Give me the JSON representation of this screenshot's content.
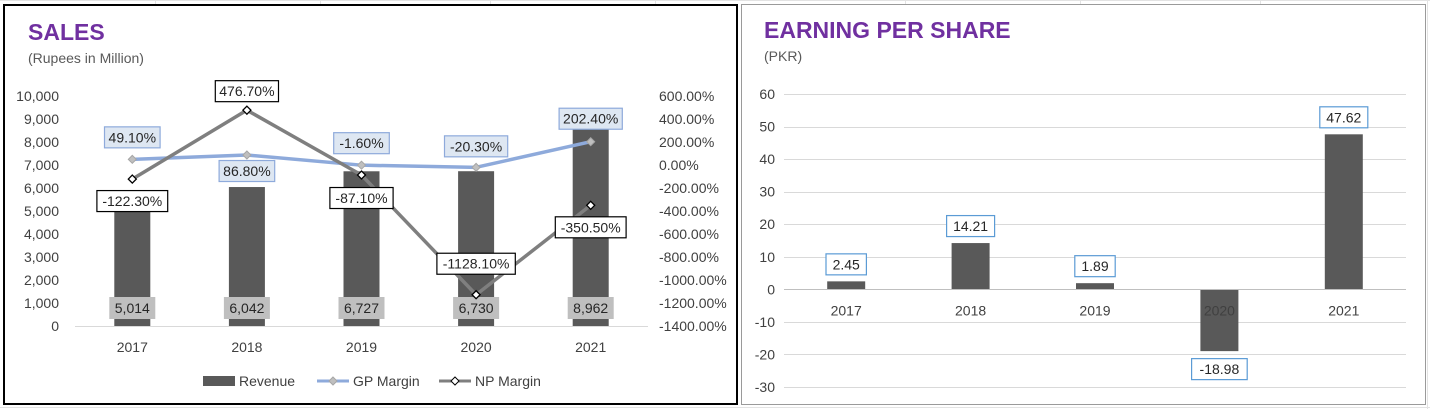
{
  "charts": {
    "sales": {
      "title": "SALES",
      "subtitle": "(Rupees in Million)"
    },
    "eps": {
      "title": "EARNING PER SHARE",
      "subtitle": "(PKR)"
    }
  },
  "chart_data": [
    {
      "type": "bar",
      "title": "SALES",
      "subtitle": "(Rupees in Million)",
      "categories": [
        "2017",
        "2018",
        "2019",
        "2020",
        "2021"
      ],
      "series": [
        {
          "name": "Revenue",
          "type": "bar",
          "axis": "left",
          "values": [
            5014,
            6042,
            6727,
            6730,
            8962
          ],
          "labels": [
            "5,014",
            "6,042",
            "6,727",
            "6,730",
            "8,962"
          ],
          "color": "#595959"
        },
        {
          "name": "GP Margin",
          "type": "line",
          "axis": "right",
          "values": [
            49.1,
            86.8,
            -1.6,
            -20.3,
            202.4
          ],
          "labels": [
            "49.10%",
            "86.80%",
            "-1.60%",
            "-20.30%",
            "202.40%"
          ],
          "color": "#8eaadb"
        },
        {
          "name": "NP Margin",
          "type": "line",
          "axis": "right",
          "values": [
            -122.3,
            476.7,
            -87.1,
            -1128.1,
            -350.5
          ],
          "labels": [
            "-122.30%",
            "476.70%",
            "-87.10%",
            "-1128.10%",
            "-350.50%"
          ],
          "color": "#7f7f7f"
        }
      ],
      "ylim": [
        0,
        10000
      ],
      "y_ticks": [
        "0",
        "1,000",
        "2,000",
        "3,000",
        "4,000",
        "5,000",
        "6,000",
        "7,000",
        "8,000",
        "9,000",
        "10,000"
      ],
      "y2lim": [
        -1400,
        600
      ],
      "y2_ticks": [
        "-1400.00%",
        "-1200.00%",
        "-1000.00%",
        "-800.00%",
        "-600.00%",
        "-400.00%",
        "-200.00%",
        "0.00%",
        "200.00%",
        "400.00%",
        "600.00%"
      ],
      "legend": "bottom",
      "grid": false
    },
    {
      "type": "bar",
      "title": "EARNING PER SHARE",
      "subtitle": "(PKR)",
      "categories": [
        "2017",
        "2018",
        "2019",
        "2020",
        "2021"
      ],
      "values": [
        2.45,
        14.21,
        1.89,
        -18.98,
        47.62
      ],
      "labels": [
        "2.45",
        "14.21",
        "1.89",
        "-18.98",
        "47.62"
      ],
      "ylim": [
        -30,
        60
      ],
      "y_ticks": [
        "-30",
        "-20",
        "-10",
        "0",
        "10",
        "20",
        "30",
        "40",
        "50",
        "60"
      ],
      "color": "#595959",
      "grid": true,
      "legend": "none"
    }
  ]
}
